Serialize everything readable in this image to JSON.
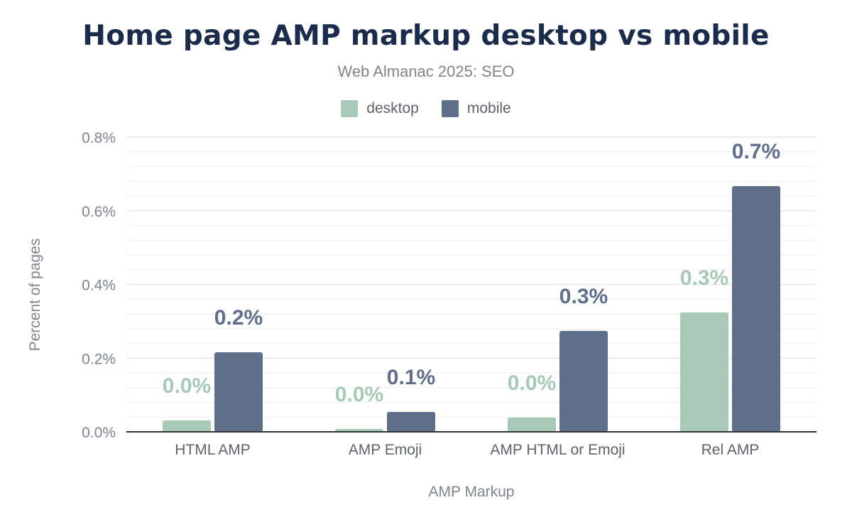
{
  "chart_data": {
    "type": "bar",
    "title": "Home page AMP markup desktop vs mobile",
    "subtitle": "Web Almanac 2025: SEO",
    "xlabel": "AMP Markup",
    "ylabel": "Percent of pages",
    "categories": [
      "HTML AMP",
      "AMP Emoji",
      "AMP HTML or Emoji",
      "Rel AMP"
    ],
    "series": [
      {
        "name": "desktop",
        "color": "#a8c9b8",
        "values": [
          0.031,
          0.008,
          0.039,
          0.324
        ],
        "labels": [
          "0.0%",
          "0.0%",
          "0.0%",
          "0.3%"
        ]
      },
      {
        "name": "mobile",
        "color": "#5f6f8a",
        "values": [
          0.216,
          0.054,
          0.274,
          0.667
        ],
        "labels": [
          "0.2%",
          "0.1%",
          "0.3%",
          "0.7%"
        ]
      }
    ],
    "ylim": [
      0,
      0.8
    ],
    "yticks": [
      "0.0%",
      "0.2%",
      "0.4%",
      "0.6%",
      "0.8%"
    ],
    "grid": true,
    "legend": "top"
  }
}
